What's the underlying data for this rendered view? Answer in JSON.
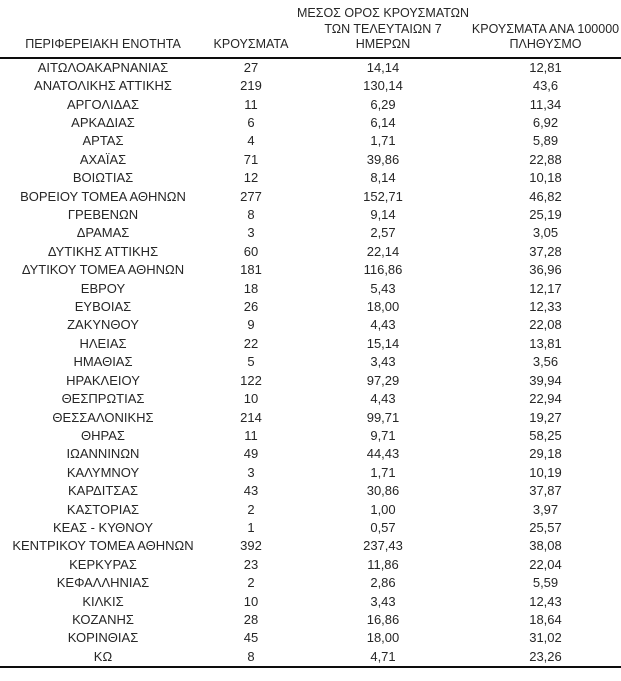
{
  "colors": {
    "background": "#ffffff",
    "text": "#262626",
    "rule": "#0d0d0d"
  },
  "table": {
    "header_display": [
      "ΠΕΡΙΦΕΡΕΙΑΚΗ ΕΝΟΤΗΤΑ",
      "ΚΡΟΥΣΜΑΤΑ",
      "ΜΕΣΟΣ ΟΡΟΣ ΚΡΟΥΣΜΑΤΩΝ\nΤΩΝ ΤΕΛΕΥΤΑΙΩΝ 7\nΗΜΕΡΩΝ",
      "ΚΡΟΥΣΜΑΤΑ ΑΝΑ 100000\nΠΛΗΘΥΣΜΟ"
    ]
  },
  "chart_data": {
    "type": "table",
    "columns": [
      "ΠΕΡΙΦΕΡΕΙΑΚΗ ΕΝΟΤΗΤΑ",
      "ΚΡΟΥΣΜΑΤΑ",
      "ΜΕΣΟΣ ΟΡΟΣ ΚΡΟΥΣΜΑΤΩΝ ΤΩΝ ΤΕΛΕΥΤΑΙΩΝ 7 ΗΜΕΡΩΝ",
      "ΚΡΟΥΣΜΑΤΑ ΑΝΑ 100000 ΠΛΗΘΥΣΜΟ"
    ],
    "rows": [
      [
        "ΑΙΤΩΛΟΑΚΑΡΝΑΝΙΑΣ",
        "27",
        "14,14",
        "12,81"
      ],
      [
        "ΑΝΑΤΟΛΙΚΗΣ ΑΤΤΙΚΗΣ",
        "219",
        "130,14",
        "43,6"
      ],
      [
        "ΑΡΓΟΛΙΔΑΣ",
        "11",
        "6,29",
        "11,34"
      ],
      [
        "ΑΡΚΑΔΙΑΣ",
        "6",
        "6,14",
        "6,92"
      ],
      [
        "ΑΡΤΑΣ",
        "4",
        "1,71",
        "5,89"
      ],
      [
        "ΑΧΑΪΑΣ",
        "71",
        "39,86",
        "22,88"
      ],
      [
        "ΒΟΙΩΤΙΑΣ",
        "12",
        "8,14",
        "10,18"
      ],
      [
        "ΒΟΡΕΙΟΥ ΤΟΜΕΑ ΑΘΗΝΩΝ",
        "277",
        "152,71",
        "46,82"
      ],
      [
        "ΓΡΕΒΕΝΩΝ",
        "8",
        "9,14",
        "25,19"
      ],
      [
        "ΔΡΑΜΑΣ",
        "3",
        "2,57",
        "3,05"
      ],
      [
        "ΔΥΤΙΚΗΣ ΑΤΤΙΚΗΣ",
        "60",
        "22,14",
        "37,28"
      ],
      [
        "ΔΥΤΙΚΟΥ ΤΟΜΕΑ ΑΘΗΝΩΝ",
        "181",
        "116,86",
        "36,96"
      ],
      [
        "ΕΒΡΟΥ",
        "18",
        "5,43",
        "12,17"
      ],
      [
        "ΕΥΒΟΙΑΣ",
        "26",
        "18,00",
        "12,33"
      ],
      [
        "ΖΑΚΥΝΘΟΥ",
        "9",
        "4,43",
        "22,08"
      ],
      [
        "ΗΛΕΙΑΣ",
        "22",
        "15,14",
        "13,81"
      ],
      [
        "ΗΜΑΘΙΑΣ",
        "5",
        "3,43",
        "3,56"
      ],
      [
        "ΗΡΑΚΛΕΙΟΥ",
        "122",
        "97,29",
        "39,94"
      ],
      [
        "ΘΕΣΠΡΩΤΙΑΣ",
        "10",
        "4,43",
        "22,94"
      ],
      [
        "ΘΕΣΣΑΛΟΝΙΚΗΣ",
        "214",
        "99,71",
        "19,27"
      ],
      [
        "ΘΗΡΑΣ",
        "11",
        "9,71",
        "58,25"
      ],
      [
        "ΙΩΑΝΝΙΝΩΝ",
        "49",
        "44,43",
        "29,18"
      ],
      [
        "ΚΑΛΥΜΝΟΥ",
        "3",
        "1,71",
        "10,19"
      ],
      [
        "ΚΑΡΔΙΤΣΑΣ",
        "43",
        "30,86",
        "37,87"
      ],
      [
        "ΚΑΣΤΟΡΙΑΣ",
        "2",
        "1,00",
        "3,97"
      ],
      [
        "ΚΕΑΣ - ΚΥΘΝΟΥ",
        "1",
        "0,57",
        "25,57"
      ],
      [
        "ΚΕΝΤΡΙΚΟΥ ΤΟΜΕΑ ΑΘΗΝΩΝ",
        "392",
        "237,43",
        "38,08"
      ],
      [
        "ΚΕΡΚΥΡΑΣ",
        "23",
        "11,86",
        "22,04"
      ],
      [
        "ΚΕΦΑΛΛΗΝΙΑΣ",
        "2",
        "2,86",
        "5,59"
      ],
      [
        "ΚΙΛΚΙΣ",
        "10",
        "3,43",
        "12,43"
      ],
      [
        "ΚΟΖΑΝΗΣ",
        "28",
        "16,86",
        "18,64"
      ],
      [
        "ΚΟΡΙΝΘΙΑΣ",
        "45",
        "18,00",
        "31,02"
      ],
      [
        "ΚΩ",
        "8",
        "4,71",
        "23,26"
      ]
    ]
  }
}
